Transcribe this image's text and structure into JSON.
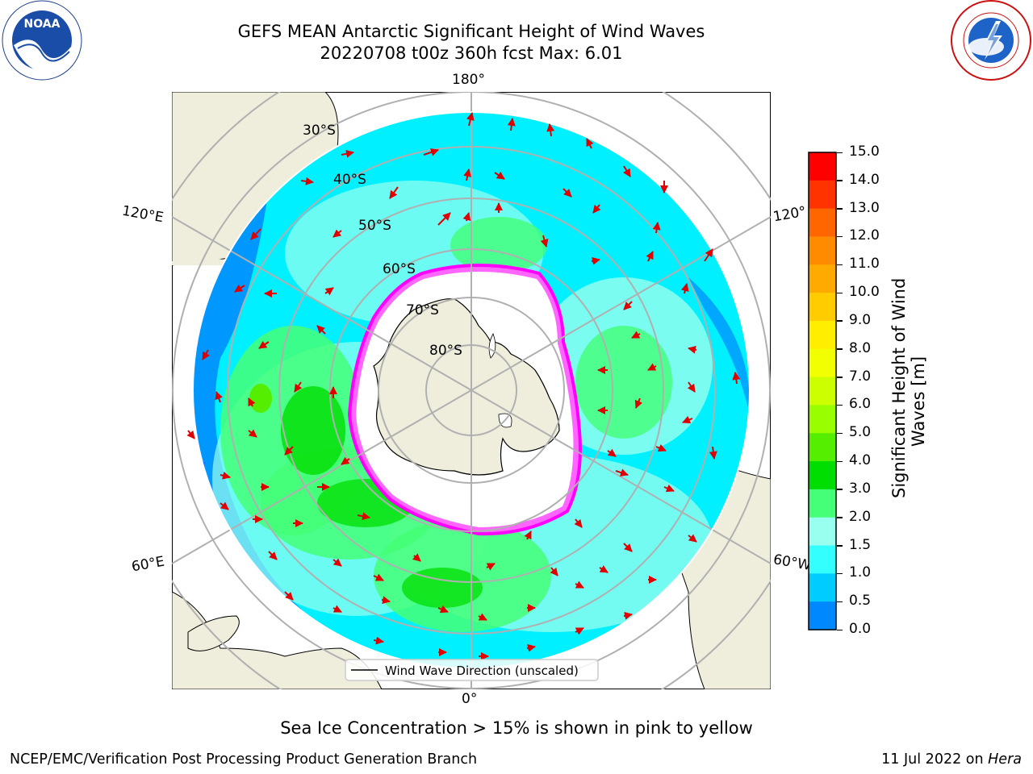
{
  "title": {
    "line1": "GEFS MEAN Antarctic Significant Height of Wind Waves",
    "line2": "20220708 t00z 360h fcst   Max: 6.01"
  },
  "map": {
    "meridian_labels": {
      "top": "180°",
      "bottom": "0°",
      "left_top": "120°E",
      "left_bottom": "60°E",
      "right_top": "120°",
      "right_bottom": "60°W"
    },
    "latitude_labels": [
      "30°S",
      "40°S",
      "50°S",
      "60°S",
      "70°S",
      "80°S"
    ],
    "legend_label": "Wind Wave Direction (unscaled)"
  },
  "colorbar": {
    "title_line1": "Significant Height of Wind",
    "title_line2": "Waves [m]",
    "ticks": [
      "15.0",
      "14.0",
      "13.0",
      "12.0",
      "11.0",
      "10.0",
      "9.0",
      "8.0",
      "7.0",
      "6.0",
      "5.0",
      "4.0",
      "3.0",
      "2.0",
      "1.5",
      "1.0",
      "0.5",
      "0.0"
    ],
    "colors": [
      "#ff0000",
      "#ff3300",
      "#ff6600",
      "#ff8c00",
      "#ffaa00",
      "#ffcc00",
      "#ffee00",
      "#f2ff00",
      "#ccff00",
      "#99ff00",
      "#55ee00",
      "#00dd00",
      "#44ff77",
      "#99ffee",
      "#33ffff",
      "#00ccff",
      "#0088ff",
      "#1133ff",
      "#0000ff"
    ]
  },
  "footer": {
    "subtitle": "Sea Ice Concentration > 15% is shown in pink to yellow",
    "left": "NCEP/EMC/Verification Post Processing Product Generation Branch",
    "right_prefix": "11 Jul 2022 on ",
    "right_em": "Hera"
  },
  "logos": {
    "left": "noaa-logo-icon",
    "right": "nws-logo-icon"
  },
  "logo_text": {
    "noaa": "NOAA"
  }
}
